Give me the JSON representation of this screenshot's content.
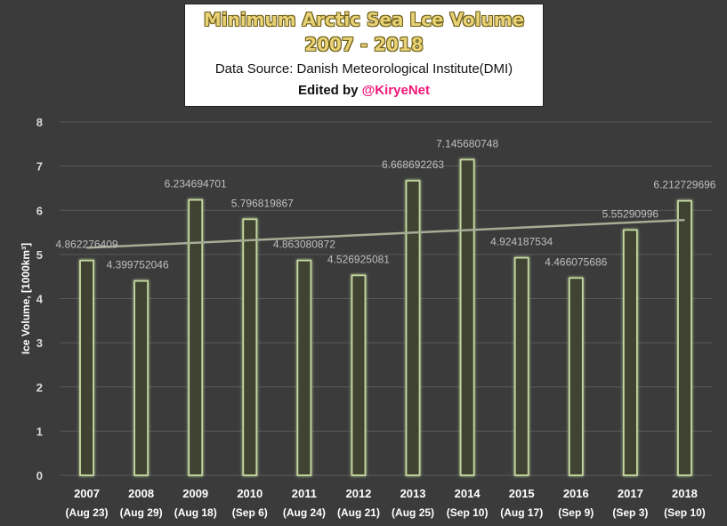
{
  "header": {
    "title_line1": "Minimum Arctic Sea Lce Volume",
    "title_line2": "2007 - 2018",
    "source": "Data Source: Danish Meteorological Institute(DMI)",
    "edited_prefix": "Edited by ",
    "edited_handle": "@KiryeNet"
  },
  "colors": {
    "background": "#3b3b3b",
    "bar_border": "#c5d9a0",
    "bar_glow": "#8aa85a",
    "trendline": "#a6ad95",
    "title_text": "#e7d277",
    "handle": "#f0187a"
  },
  "chart_data": {
    "type": "bar",
    "ylabel": "Ice Volume, [1000km³]",
    "ylim": [
      0,
      8
    ],
    "yticks": [
      0,
      1,
      2,
      3,
      4,
      5,
      6,
      7,
      8
    ],
    "grid": true,
    "categories": [
      "2007",
      "2008",
      "2009",
      "2010",
      "2011",
      "2012",
      "2013",
      "2014",
      "2015",
      "2016",
      "2017",
      "2018"
    ],
    "category_dates": [
      "(Aug 23)",
      "(Aug 29)",
      "(Aug 18)",
      "(Sep 6)",
      "(Aug 24)",
      "(Aug 21)",
      "(Aug 25)",
      "(Sep 10)",
      "(Aug 17)",
      "(Sep 9)",
      "(Sep 3)",
      "(Sep 10)"
    ],
    "values": [
      4.862276409,
      4.399752046,
      6.234694701,
      5.796819867,
      4.863080872,
      4.526925081,
      6.668692263,
      7.145680748,
      4.924187534,
      4.466075686,
      5.55290996,
      6.212729696
    ],
    "value_labels": [
      "4.862276409",
      "4.399752046",
      "6.234694701",
      "5.796819867",
      "4.863080872",
      "4.526925081",
      "6.668692263",
      "7.145680748",
      "4.924187534",
      "4.466075686",
      "5.55290996",
      "6.212729696"
    ],
    "trendline": {
      "type": "linear",
      "start": 5.15,
      "end": 5.78
    }
  }
}
